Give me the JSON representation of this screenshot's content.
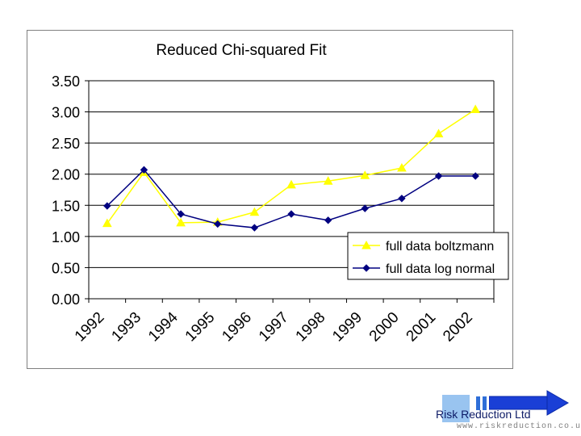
{
  "chart_data": {
    "type": "line",
    "title": "Reduced Chi-squared Fit",
    "categories": [
      "1992",
      "1993",
      "1994",
      "1995",
      "1996",
      "1997",
      "1998",
      "1999",
      "2000",
      "2001",
      "2002"
    ],
    "ylim": [
      0,
      3.5
    ],
    "yticks": [
      "0.00",
      "0.50",
      "1.00",
      "1.50",
      "2.00",
      "2.50",
      "3.00",
      "3.50"
    ],
    "ytick_values": [
      0,
      0.5,
      1.0,
      1.5,
      2.0,
      2.5,
      3.0,
      3.5
    ],
    "grid": true,
    "legend_position": "bottom-right",
    "series": [
      {
        "name": "full data boltzmann",
        "color": "#ffff00",
        "marker": "triangle",
        "values": [
          1.21,
          2.03,
          1.22,
          1.23,
          1.39,
          1.83,
          1.89,
          1.98,
          2.1,
          2.65,
          3.04
        ]
      },
      {
        "name": "full data log normal",
        "color": "#000080",
        "marker": "diamond",
        "values": [
          1.49,
          2.07,
          1.36,
          1.2,
          1.14,
          1.36,
          1.26,
          1.45,
          1.61,
          1.97,
          1.97
        ]
      }
    ]
  },
  "logo": {
    "name": "Risk Reduction Ltd",
    "url": "www.riskreduction.co.uk",
    "colors": {
      "square": "#99c4f0",
      "bars": "#2f6fd8",
      "arrow": "#1a3fd6"
    }
  }
}
